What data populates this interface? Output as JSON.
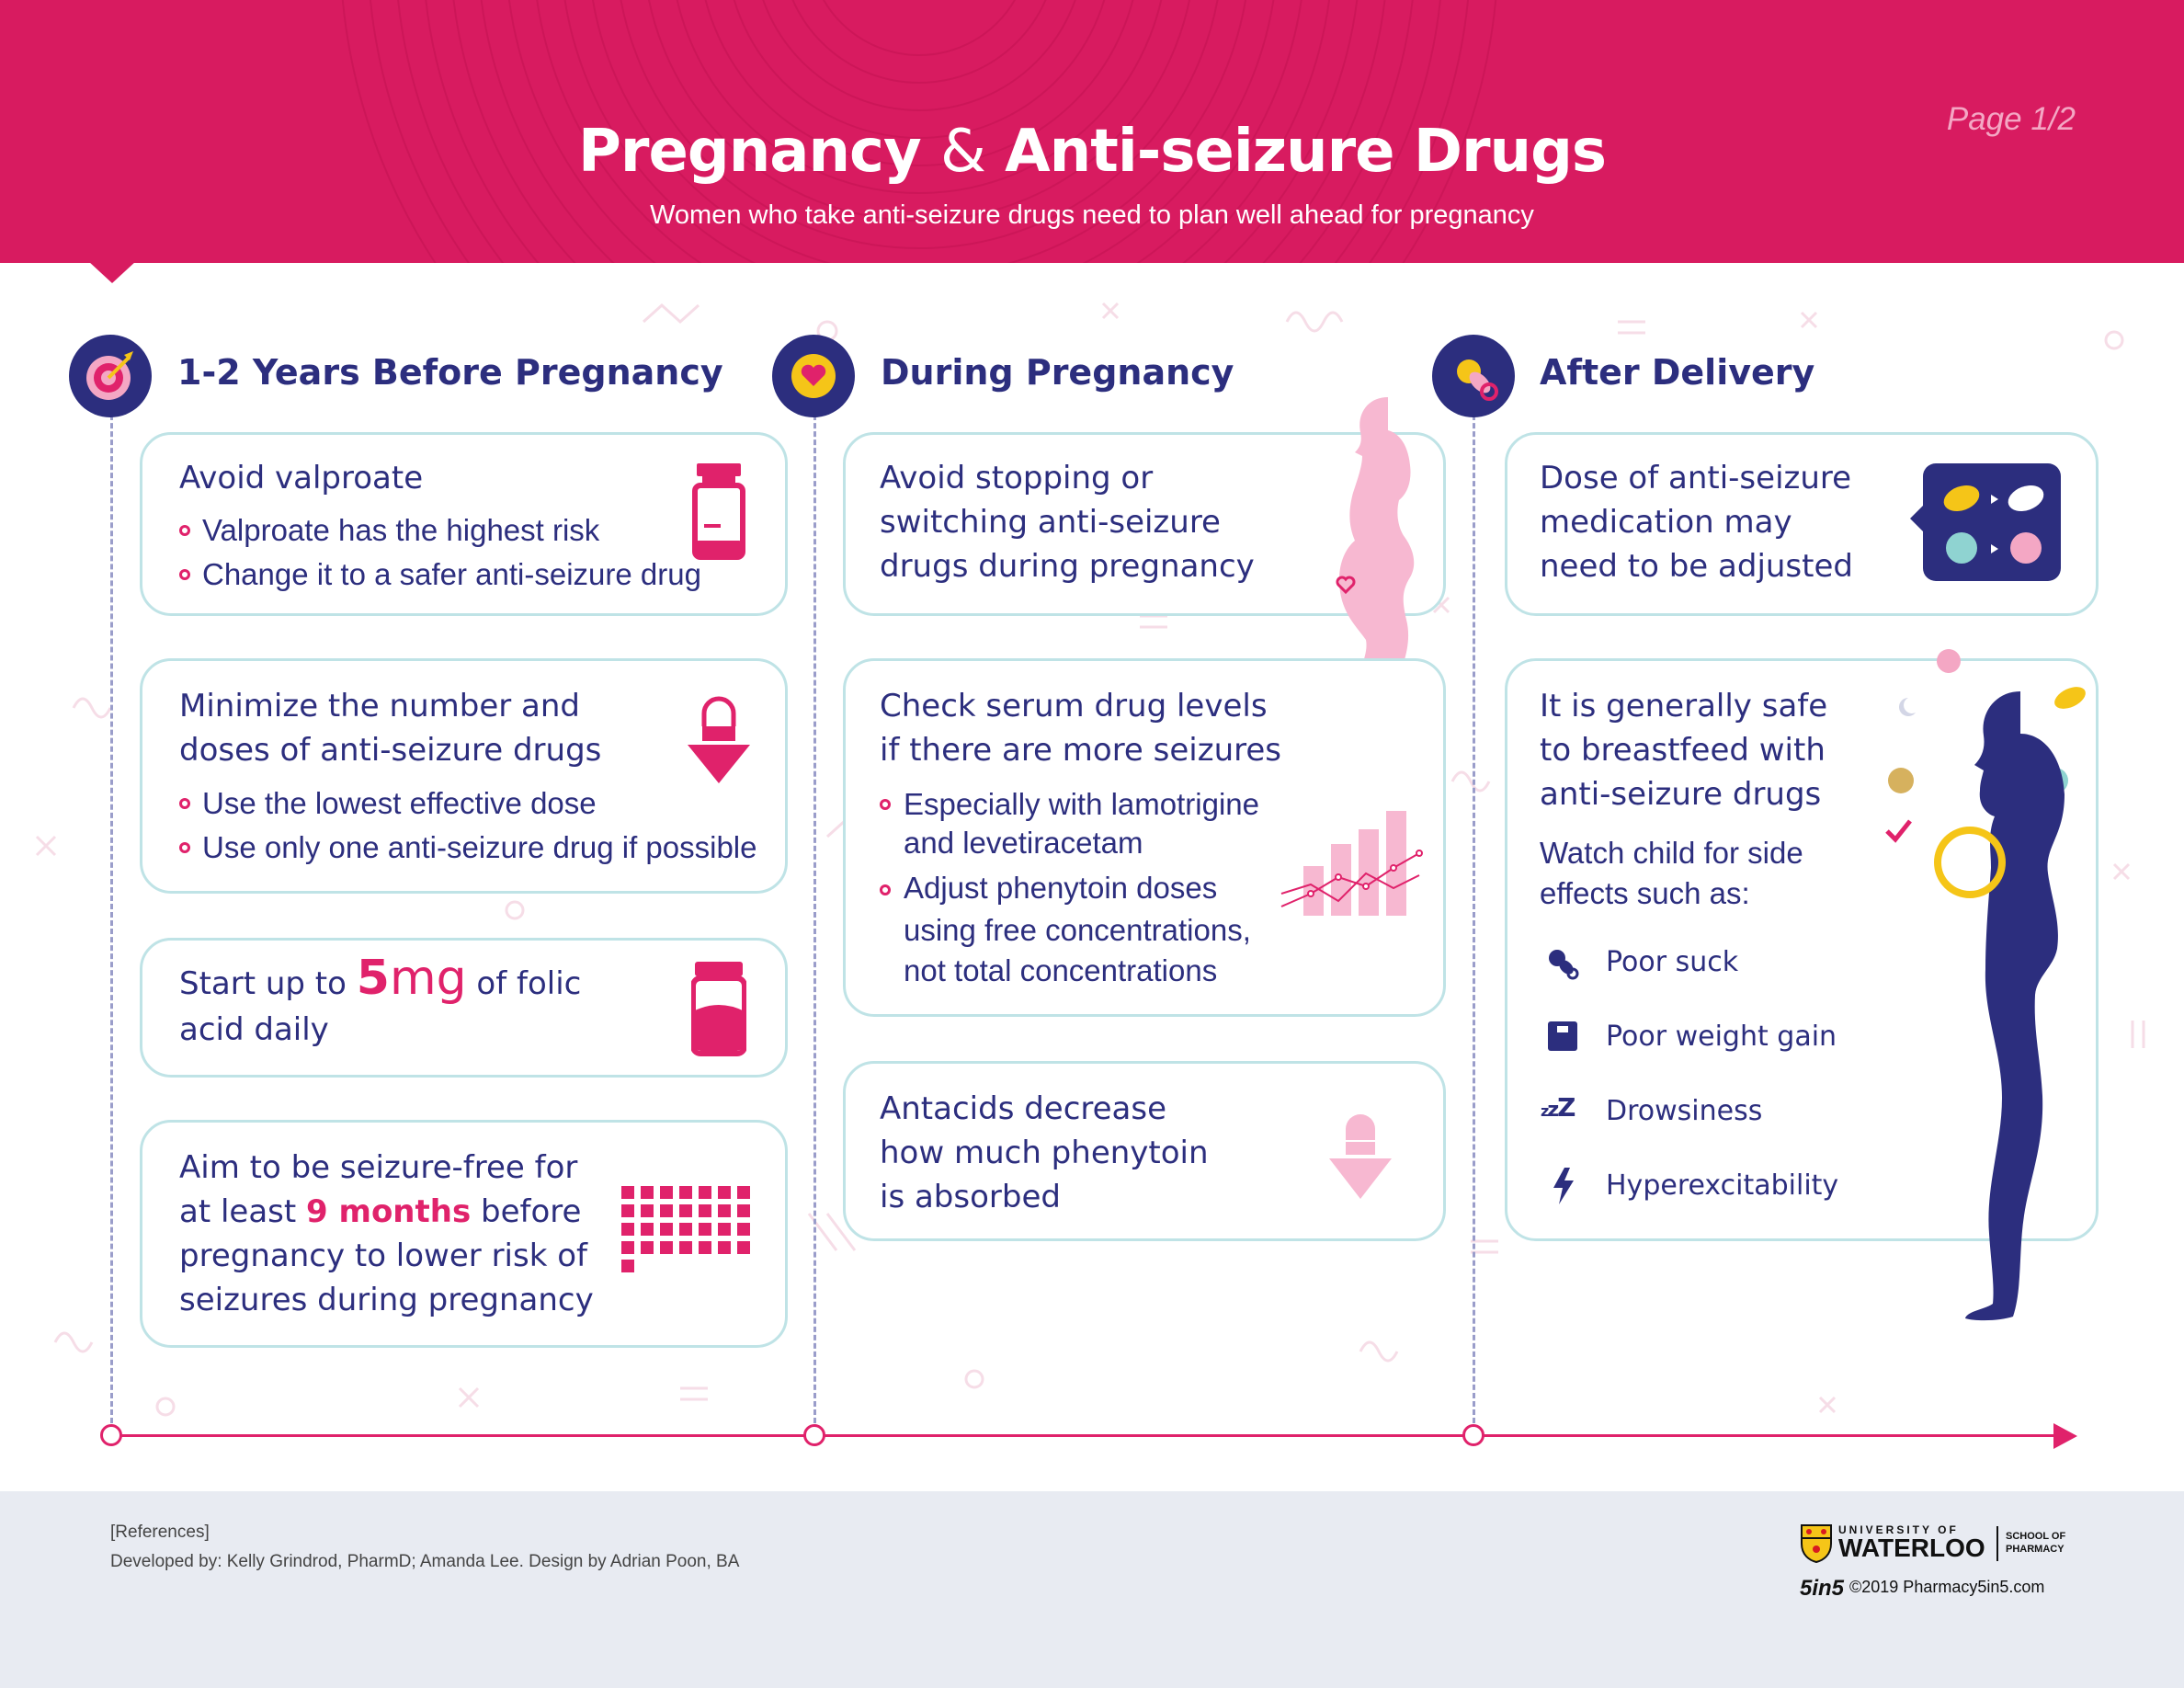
{
  "header": {
    "title_part1": "Pregnancy",
    "title_amp": "&",
    "title_part2": "Anti-seizure Drugs",
    "subtitle": "Women who take anti-seizure drugs need to plan well ahead for pregnancy",
    "page_label": "Page 1/2"
  },
  "columns": [
    {
      "title": "1-2 Years Before Pregnancy",
      "icon": "target-icon",
      "cards": [
        {
          "lines": [
            "Avoid valproate"
          ],
          "bullets": [
            "Valproate has the highest risk",
            "Change it to a safer anti-seizure drug"
          ],
          "icon": "medicine-bottle-icon"
        },
        {
          "lines": [
            "Minimize the number and",
            "doses of anti-seizure drugs"
          ],
          "bullets": [
            "Use the lowest effective dose",
            "Use only one anti-seizure drug if possible"
          ],
          "icon": "pill-down-arrow-icon"
        },
        {
          "pre": "Start up to",
          "big": "5",
          "unit": "mg",
          "post": "of folic",
          "line2": "acid daily",
          "icon": "folic-acid-bottle-icon"
        },
        {
          "line1": "Aim to be seizure-free for",
          "line2_pre": "at least",
          "line2_hl": "9 months",
          "line2_post": "before",
          "line3": "pregnancy to lower risk of",
          "line4": "seizures during pregnancy",
          "icon": "calendar-grid-icon"
        }
      ]
    },
    {
      "title": "During Pregnancy",
      "icon": "heart-icon",
      "cards": [
        {
          "lines": [
            "Avoid stopping or",
            "switching anti-seizure",
            "drugs during pregnancy"
          ],
          "icon": "pregnant-woman-icon"
        },
        {
          "lines": [
            "Check serum drug levels",
            "if there are more seizures"
          ],
          "bullets": [
            [
              "Especially with lamotrigine",
              "and levetiracetam"
            ],
            [
              "Adjust phenytoin doses",
              "using free concentrations,",
              "not total concentrations"
            ]
          ],
          "icon": "bar-line-chart-icon"
        },
        {
          "lines": [
            "Antacids decrease",
            "how much phenytoin",
            "is absorbed"
          ],
          "icon": "pill-down-arrow-light-icon"
        }
      ]
    },
    {
      "title": "After Delivery",
      "icon": "pacifier-icon",
      "cards": [
        {
          "lines": [
            "Dose of anti-seizure",
            "medication may",
            "need to be adjusted"
          ],
          "icon": "pills-chat-icon"
        },
        {
          "lines": [
            "It is generally safe",
            "to breastfeed with",
            "anti-seizure drugs"
          ],
          "watch": [
            "Watch child for side",
            "effects such as:"
          ],
          "effects": [
            {
              "label": "Poor suck",
              "icon": "pacifier-icon"
            },
            {
              "label": "Poor weight gain",
              "icon": "scale-icon"
            },
            {
              "label": "Drowsiness",
              "icon": "zzz-icon"
            },
            {
              "label": "Hyperexcitability",
              "icon": "lightning-icon"
            }
          ]
        }
      ]
    }
  ],
  "footer": {
    "references": "[References]",
    "developed_by": "Developed by: Kelly Grindrod, PharmD; Amanda Lee. Design by Adrian Poon, BA",
    "uw_top": "UNIVERSITY OF",
    "uw_main": "WATERLOO",
    "uw_school": "SCHOOL OF PHARMACY",
    "fivein5": "5in5",
    "copyright": "©2019 Pharmacy5in5.com"
  },
  "colors": {
    "brand_pink": "#d81b60",
    "accent_pink": "#e0226b",
    "navy": "#2c2e7e",
    "card_border": "#bfe3e6",
    "footer_bg": "#e8ebf2"
  }
}
